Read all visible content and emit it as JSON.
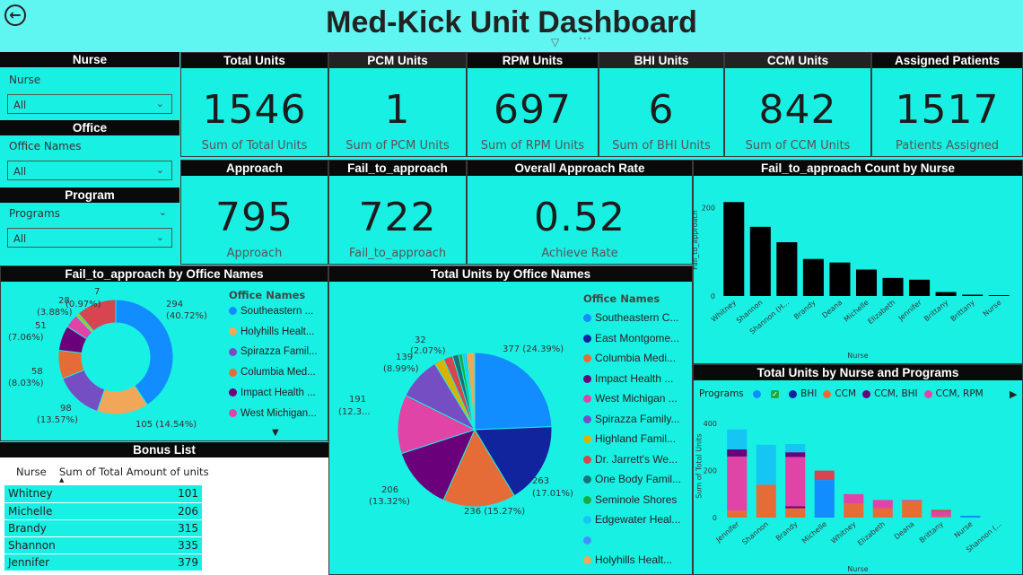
{
  "title": "Med-Kick Unit Dashboard",
  "filters": {
    "nurse": {
      "header": "Nurse",
      "label": "Nurse",
      "value": "All"
    },
    "office": {
      "header": "Office",
      "label": "Office Names",
      "value": "All"
    },
    "program": {
      "header": "Program",
      "label": "Programs",
      "value": "All"
    }
  },
  "cards": {
    "total_units": {
      "header": "Total Units",
      "value": "1546",
      "caption": "Sum of Total Units"
    },
    "pcm_units": {
      "header": "PCM Units",
      "value": "1",
      "caption": "Sum of PCM Units"
    },
    "rpm_units": {
      "header": "RPM Units",
      "value": "697",
      "caption": "Sum of RPM Units"
    },
    "bhi_units": {
      "header": "BHI Units",
      "value": "6",
      "caption": "Sum of BHI Units"
    },
    "ccm_units": {
      "header": "CCM Units",
      "value": "842",
      "caption": "Sum of CCM Units"
    },
    "assigned": {
      "header": "Assigned Patients",
      "value": "1517",
      "caption": "Patients Assigned"
    },
    "approach": {
      "header": "Approach",
      "value": "795",
      "caption": "Approach"
    },
    "fail": {
      "header": "Fail_to_approach",
      "value": "722",
      "caption": "Fail_to_approach"
    },
    "rate": {
      "header": "Overall Approach Rate",
      "value": "0.52",
      "caption": "Achieve Rate"
    }
  },
  "colors": {
    "bg": "#23f2e6",
    "blue": "#118dff",
    "navy": "#12239e",
    "orange": "#e66c37",
    "purple": "#6b007b",
    "pink": "#e044a7",
    "violet": "#744ec2",
    "yellow": "#d9b300",
    "red": "#d64550",
    "teal": "#197278",
    "green": "#1aab40",
    "lightblue": "#15c6f4",
    "lightorange": "#f2a65a"
  },
  "fail_by_office": {
    "header": "Fail_to_approach by Office Names",
    "legend_title": "Office Names",
    "legend": [
      {
        "name": "Southeastern ...",
        "color": "#118dff"
      },
      {
        "name": "Holyhills Healt...",
        "color": "#f2a65a"
      },
      {
        "name": "Spirazza Famil...",
        "color": "#744ec2"
      },
      {
        "name": "Columbia Med...",
        "color": "#e66c37"
      },
      {
        "name": "Impact Health ...",
        "color": "#6b007b"
      },
      {
        "name": "West Michigan...",
        "color": "#e044a7"
      }
    ],
    "labels": [
      "294",
      "(40.72%)",
      "105 (14.54%)",
      "98",
      "(13.57%)",
      "58",
      "(8.03%)",
      "51",
      "(7.06%)",
      "28",
      "(3.88%)",
      "7",
      "(0.97%)"
    ]
  },
  "units_by_office": {
    "header": "Total Units by Office Names",
    "legend_title": "Office Names",
    "legend": [
      {
        "name": "Southeastern C...",
        "color": "#118dff"
      },
      {
        "name": "East Montgome...",
        "color": "#12239e"
      },
      {
        "name": "Columbia Medi...",
        "color": "#e66c37"
      },
      {
        "name": "Impact Health ...",
        "color": "#6b007b"
      },
      {
        "name": "West Michigan ...",
        "color": "#e044a7"
      },
      {
        "name": "Spirazza Family...",
        "color": "#744ec2"
      },
      {
        "name": "Highland Famil...",
        "color": "#d9b300"
      },
      {
        "name": "Dr. Jarrett's We...",
        "color": "#d64550"
      },
      {
        "name": "One Body Famil...",
        "color": "#197278"
      },
      {
        "name": "Seminole Shores",
        "color": "#1aab40"
      },
      {
        "name": "Edgewater Heal...",
        "color": "#15c6f4"
      },
      {
        "name": "",
        "color": "#4092ff"
      },
      {
        "name": "Holyhills Healt...",
        "color": "#f2a65a"
      }
    ],
    "labels": [
      "377 (24.39%)",
      "263",
      "(17.01%)",
      "236 (15.27%)",
      "206",
      "(13.32%)",
      "191",
      "(12.3...",
      "139",
      "(8.99%)",
      "32",
      "(2.07%)"
    ]
  },
  "fail_by_nurse": {
    "header": "Fail_to_approach Count by Nurse",
    "xlabel": "Nurse",
    "ylabel": "Fail_to_approach"
  },
  "units_by_nurse_programs": {
    "header": "Total Units by Nurse and Programs",
    "legend_title": "Programs",
    "legend": [
      {
        "name": "",
        "color": "#118dff"
      },
      {
        "name": "",
        "color": "#1aab40",
        "check": true
      },
      {
        "name": "BHI",
        "color": "#12239e"
      },
      {
        "name": "CCM",
        "color": "#e66c37"
      },
      {
        "name": "CCM, BHI",
        "color": "#6b007b"
      },
      {
        "name": "CCM, RPM",
        "color": "#e044a7"
      }
    ],
    "xlabel": "Nurse",
    "ylabel": "Sum of Total Units"
  },
  "bonus": {
    "header": "Bonus List",
    "col_nurse": "Nurse",
    "col_sum": "Sum of Total Amount of units",
    "rows": [
      {
        "nurse": "Whitney",
        "value": "101"
      },
      {
        "nurse": "Michelle",
        "value": "206"
      },
      {
        "nurse": "Brandy",
        "value": "315"
      },
      {
        "nurse": "Shannon",
        "value": "335"
      },
      {
        "nurse": "Jennifer",
        "value": "379"
      }
    ]
  },
  "chart_data": [
    {
      "type": "bar",
      "title": "Fail_to_approach Count by Nurse",
      "xlabel": "Nurse",
      "ylabel": "Fail_to_approach",
      "categories": [
        "Whitney",
        "Shannon",
        "Shannon (H...",
        "Brandy",
        "Deana",
        "Michelle",
        "Elizabeth",
        "Jennifer",
        "Brittany",
        "Brittany",
        "Nurse"
      ],
      "values": [
        213,
        157,
        122,
        84,
        76,
        60,
        41,
        37,
        9,
        3,
        2
      ],
      "yticks": [
        0,
        200
      ],
      "ylim": [
        0,
        240
      ],
      "grid": false
    },
    {
      "type": "bar",
      "stacked": true,
      "title": "Total Units by Nurse and Programs",
      "xlabel": "Nurse",
      "ylabel": "Sum of Total Units",
      "categories": [
        "Jennifer",
        "Shannon",
        "Brandy",
        "Michelle",
        "Whitney",
        "Elizabeth",
        "Deana",
        "Brittany",
        "Nurse",
        "Shannon (..."
      ],
      "yticks": [
        0,
        200,
        400
      ],
      "ylim": [
        0,
        420
      ],
      "series": [
        {
          "name": "CCM",
          "color": "#e66c37",
          "values": [
            30,
            140,
            40,
            0,
            60,
            40,
            70,
            5,
            0,
            0
          ]
        },
        {
          "name": "CCM, BHI",
          "color": "#6b007b",
          "values": [
            0,
            0,
            8,
            0,
            0,
            0,
            0,
            0,
            0,
            0
          ]
        },
        {
          "name": "CCM, RPM",
          "color": "#e044a7",
          "values": [
            230,
            0,
            210,
            0,
            40,
            35,
            5,
            20,
            0,
            0
          ]
        },
        {
          "name": "BHI",
          "color": "#12239e",
          "values": [
            0,
            0,
            0,
            0,
            0,
            0,
            0,
            0,
            0,
            0
          ]
        },
        {
          "name": "",
          "color": "#118dff",
          "values": [
            0,
            0,
            0,
            160,
            0,
            0,
            0,
            0,
            8,
            0
          ]
        },
        {
          "name": "",
          "color": "#6b007b",
          "values": [
            30,
            0,
            20,
            0,
            0,
            0,
            0,
            0,
            0,
            0
          ]
        },
        {
          "name": "",
          "color": "#15c6f4",
          "values": [
            85,
            170,
            35,
            0,
            0,
            0,
            0,
            0,
            0,
            0
          ]
        },
        {
          "name": "",
          "color": "#d64550",
          "values": [
            0,
            0,
            0,
            40,
            0,
            0,
            0,
            8,
            0,
            0
          ]
        }
      ]
    },
    {
      "type": "pie",
      "donut": true,
      "title": "Fail_to_approach by Office Names",
      "values": [
        294,
        105,
        98,
        58,
        51,
        28,
        7,
        81
      ],
      "colors": [
        "#118dff",
        "#f2a65a",
        "#744ec2",
        "#e66c37",
        "#6b007b",
        "#e044a7",
        "#d9b300",
        "#d64550"
      ]
    },
    {
      "type": "pie",
      "title": "Total Units by Office Names",
      "values": [
        377,
        263,
        236,
        206,
        191,
        139,
        32,
        30,
        20,
        12,
        8,
        6,
        26
      ],
      "colors": [
        "#118dff",
        "#12239e",
        "#e66c37",
        "#6b007b",
        "#e044a7",
        "#744ec2",
        "#d9b300",
        "#d64550",
        "#197278",
        "#1aab40",
        "#15c6f4",
        "#4092ff",
        "#f2a65a"
      ]
    }
  ]
}
